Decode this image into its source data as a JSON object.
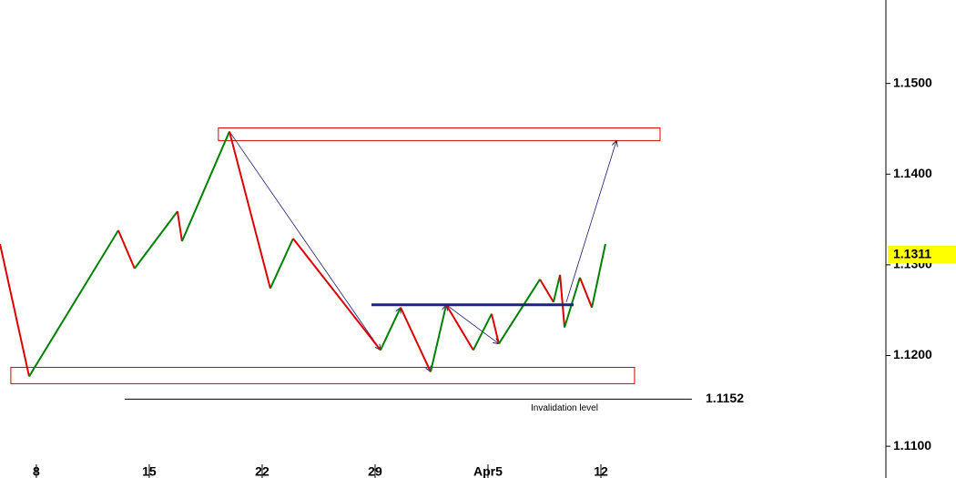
{
  "chart_data": {
    "type": "line",
    "up_color": "#008000",
    "down_color": "#dd0000",
    "x": [
      -1.61,
      -0.32,
      3.63,
      4.35,
      6.25,
      6.45,
      8.55,
      10.36,
      11.37,
      15.24,
      16.13,
      17.46,
      18.15,
      19.35,
      20.16,
      20.48,
      22.3,
      22.9,
      23.19,
      23.39,
      24.07,
      24.6,
      25.2
    ],
    "values": [
      1.1323,
      1.1177,
      1.1338,
      1.1296,
      1.1359,
      1.1326,
      1.1447,
      1.1274,
      1.1329,
      1.1206,
      1.1253,
      1.1182,
      1.1256,
      1.1206,
      1.1246,
      1.1213,
      1.1284,
      1.1259,
      1.1289,
      1.1231,
      1.1286,
      1.1253,
      1.1323
    ],
    "xlim": [
      -1.61,
      37.58
    ],
    "ylim": [
      1.1065,
      1.1592
    ],
    "xticks": [
      {
        "value": 0,
        "label": "8"
      },
      {
        "value": 5,
        "label": "15"
      },
      {
        "value": 10,
        "label": "22"
      },
      {
        "value": 15,
        "label": "29"
      },
      {
        "value": 20,
        "label": "Apr5"
      },
      {
        "value": 25,
        "label": "12"
      }
    ],
    "yticks": [
      {
        "value": 1.11,
        "label": "1.1100"
      },
      {
        "value": 1.12,
        "label": "1.1200"
      },
      {
        "value": 1.13,
        "label": "1.1300"
      },
      {
        "value": 1.14,
        "label": "1.1400"
      },
      {
        "value": 1.15,
        "label": "1.1500"
      }
    ],
    "last_price": 1.1311,
    "zones": [
      {
        "x": [
          8.06,
          27.62
        ],
        "y": [
          1.1437,
          1.1451
        ]
      },
      {
        "x": [
          -1.13,
          26.49
        ],
        "y": [
          1.1169,
          1.1187
        ]
      }
    ],
    "neckline": {
      "x": [
        14.84,
        23.79
      ],
      "y": 1.1256
    },
    "projection": {
      "x": [
        8.55,
        15.24,
        16.13,
        17.46,
        18.15,
        20.48
      ],
      "values": [
        1.1447,
        1.1206,
        1.1253,
        1.1182,
        1.1256,
        1.1213
      ]
    },
    "target_arrow": {
      "x": [
        23.47,
        25.69
      ],
      "values": [
        1.1259,
        1.1437
      ]
    },
    "invalidation": {
      "x": [
        3.91,
        29.03
      ],
      "level": 1.1152,
      "label": "Invalidation level"
    }
  }
}
